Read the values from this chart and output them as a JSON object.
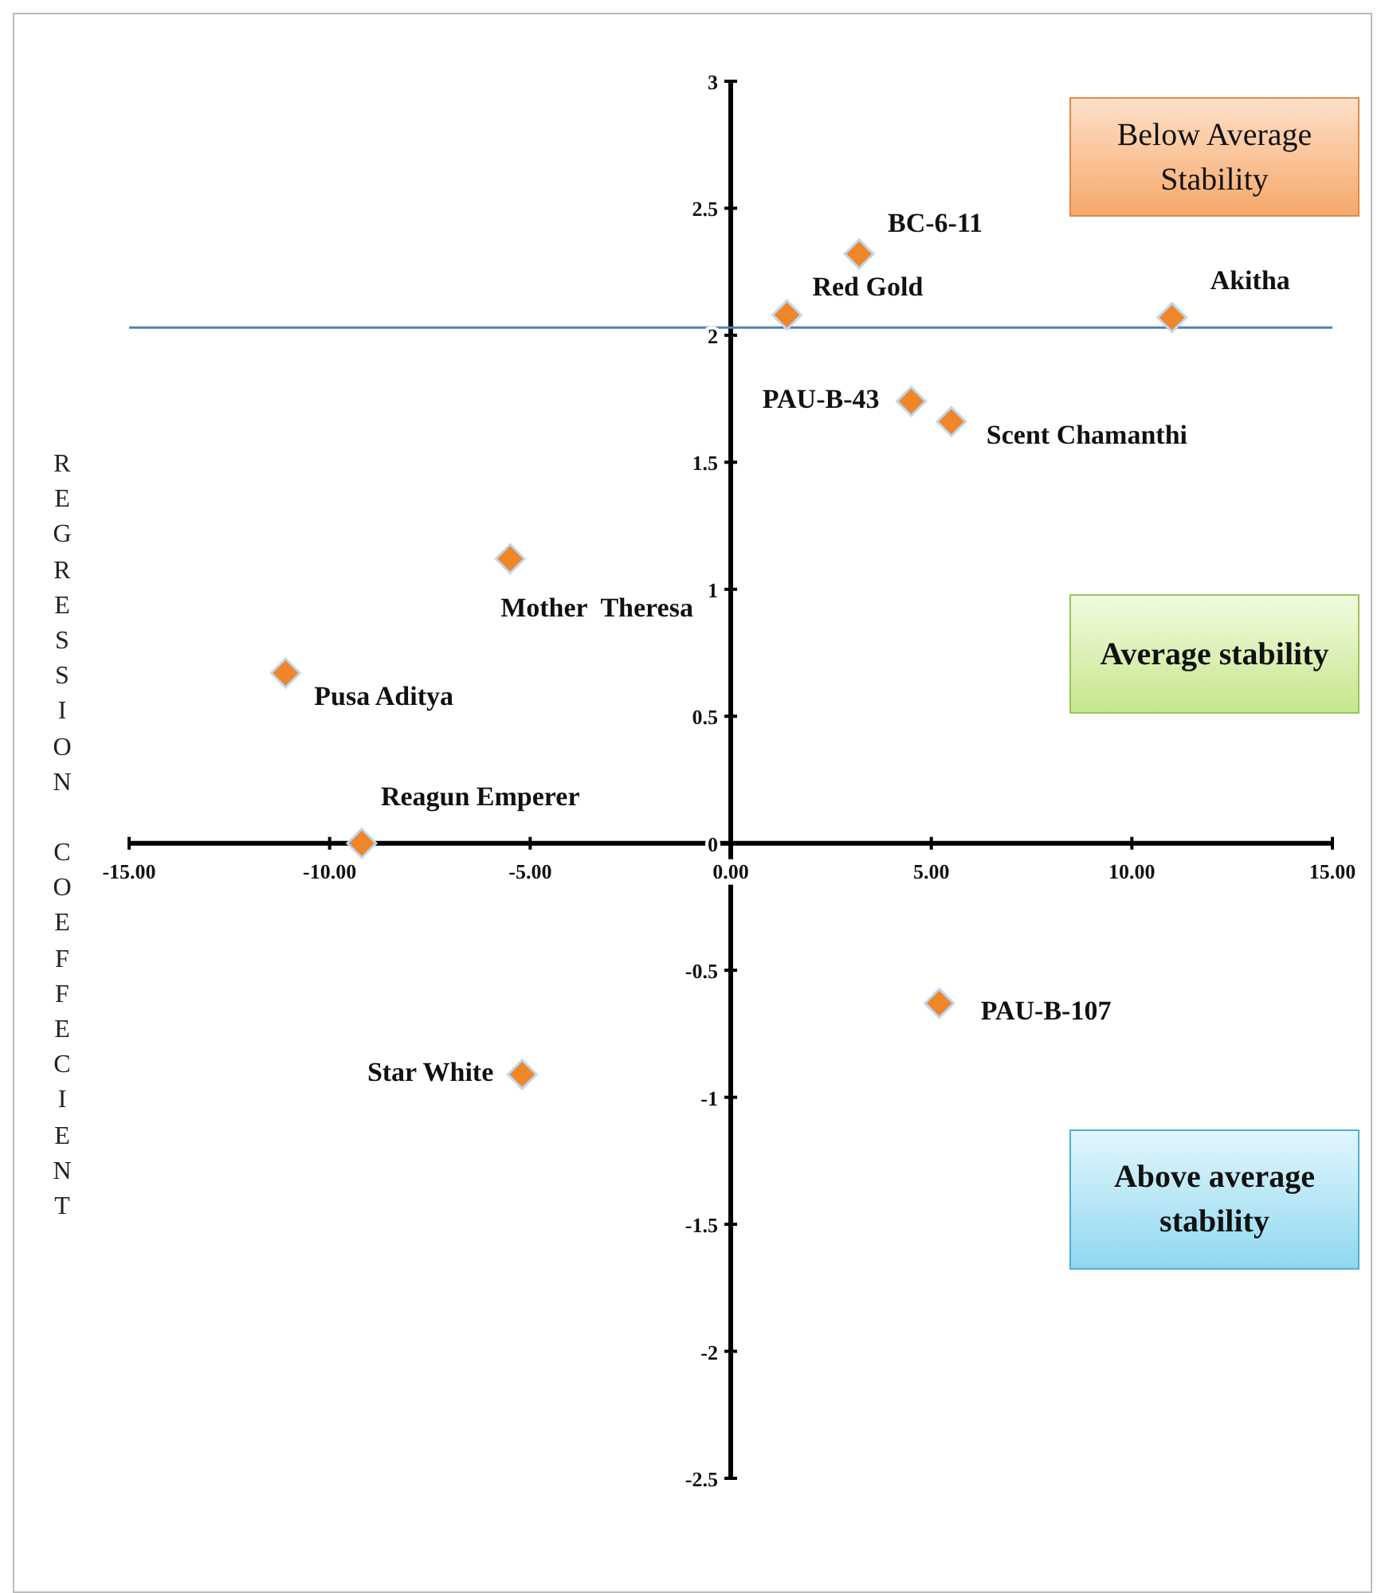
{
  "chart_data": {
    "type": "scatter",
    "ylabel": "REGRESSION COEFFECIENT",
    "marker": "diamond",
    "grid": false,
    "xlim": [
      -15,
      15
    ],
    "xticks": [
      {
        "value": -15,
        "label": "-15.00"
      },
      {
        "value": -10,
        "label": "-10.00"
      },
      {
        "value": -5,
        "label": "-5.00"
      },
      {
        "value": 0,
        "label": "0.00"
      },
      {
        "value": 5,
        "label": "5.00"
      },
      {
        "value": 10,
        "label": "10.00"
      },
      {
        "value": 15,
        "label": "15.00"
      }
    ],
    "ylim": [
      -2.5,
      3
    ],
    "yticks": [
      -2.5,
      -2,
      -1.5,
      -1,
      -0.5,
      0,
      0.5,
      1,
      1.5,
      2,
      2.5,
      3
    ],
    "series": [
      {
        "name": "BC-6-11",
        "color": "#f0862a",
        "x": [
          3.2
        ],
        "values": [
          2.32
        ]
      },
      {
        "name": "Red Gold",
        "color": "#f0862a",
        "x": [
          1.4
        ],
        "values": [
          2.08
        ]
      },
      {
        "name": "Akitha",
        "color": "#f0862a",
        "x": [
          11.0
        ],
        "values": [
          2.07
        ]
      },
      {
        "name": "PAU-B-43",
        "color": "#f0862a",
        "x": [
          4.5
        ],
        "values": [
          1.74
        ]
      },
      {
        "name": "Scent Chamanthi",
        "color": "#f0862a",
        "x": [
          5.5
        ],
        "values": [
          1.66
        ]
      },
      {
        "name": "Mother  Theresa",
        "color": "#f0862a",
        "x": [
          -5.5
        ],
        "values": [
          1.12
        ]
      },
      {
        "name": "Pusa Aditya",
        "color": "#f0862a",
        "x": [
          -11.1
        ],
        "values": [
          0.67
        ]
      },
      {
        "name": "Reagun Emperer",
        "color": "#f0862a",
        "x": [
          -9.2
        ],
        "values": [
          0
        ]
      },
      {
        "name": "PAU-B-107",
        "color": "#f0862a",
        "x": [
          5.2
        ],
        "values": [
          -0.63
        ]
      },
      {
        "name": "Star White",
        "color": "#f0862a",
        "x": [
          -5.2
        ],
        "values": [
          -0.91
        ]
      }
    ],
    "ref_lines": [
      {
        "axis": "y",
        "value": 2.03,
        "color": "#4f81bd"
      }
    ],
    "annotations": [
      "Below Average Stability",
      "Average stability",
      "Above average stability"
    ]
  }
}
